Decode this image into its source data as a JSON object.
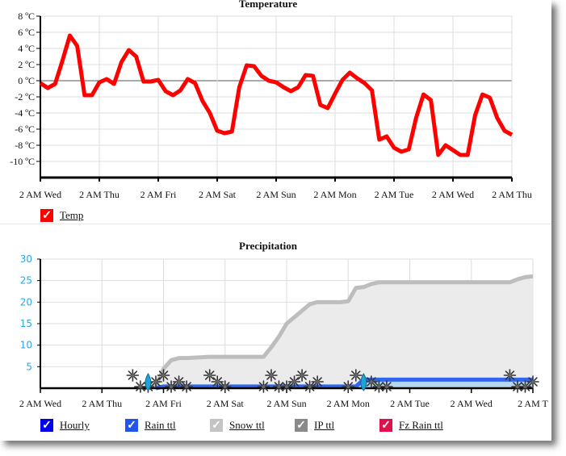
{
  "chart_data": [
    {
      "type": "line",
      "title": "Temperature",
      "x_tick_labels": [
        "2 AM Wed",
        "2 AM Thu",
        "2 AM Fri",
        "2 AM Sat",
        "2 AM Sun",
        "2 AM Mon",
        "2 AM Tue",
        "2 AM Wed",
        "2 AM Thu"
      ],
      "y_tick_labels": [
        "8 ºC",
        "6 ºC",
        "4 ºC",
        "2 ºC",
        "0 ºC",
        "-2 ºC",
        "-4 ºC",
        "-6 ºC",
        "-8 ºC",
        "-10 ºC"
      ],
      "ylim": [
        -12,
        8
      ],
      "x_start": "2 AM Wed",
      "interval_hours": 3,
      "grid": true,
      "series": [
        {
          "name": "Temp",
          "color": "#ff0000",
          "values": [
            -0.3,
            -0.9,
            -0.4,
            2.5,
            5.6,
            4.3,
            -1.8,
            -1.8,
            -0.2,
            0.2,
            -0.4,
            2.3,
            3.8,
            3.0,
            -0.1,
            -0.1,
            0.1,
            -1.3,
            -1.8,
            -1.2,
            0.2,
            -0.3,
            -2.5,
            -4.0,
            -6.2,
            -6.5,
            -6.3,
            -0.8,
            1.9,
            1.8,
            0.6,
            0.0,
            -0.2,
            -0.8,
            -1.3,
            -0.8,
            0.7,
            0.6,
            -3.0,
            -3.4,
            -1.6,
            0.1,
            1.0,
            0.3,
            -0.3,
            -1.2,
            -7.3,
            -6.9,
            -8.3,
            -8.8,
            -8.5,
            -4.6,
            -1.7,
            -2.4,
            -9.2,
            -8.0,
            -8.6,
            -9.2,
            -9.2,
            -4.3,
            -1.7,
            -2.1,
            -4.6,
            -6.2,
            -6.7
          ]
        }
      ],
      "legend": [
        {
          "label": "Temp",
          "checked": true,
          "color": "#ff0000"
        }
      ],
      "legend_placement": "bottom-left"
    },
    {
      "type": "area",
      "title": "Precipitation",
      "x_tick_labels": [
        "2 AM Wed",
        "2 AM Thu",
        "2 AM Fri",
        "2 AM Sat",
        "2 AM Sun",
        "2 AM Mon",
        "2 AM Tue",
        "2 AM Wed",
        "2 AM T"
      ],
      "y_tick_labels": [
        "30",
        "25",
        "20",
        "15",
        "10",
        "5"
      ],
      "ylim": [
        0,
        30
      ],
      "x_start": "2 AM Wed",
      "interval_hours": 3,
      "grid": true,
      "series": [
        {
          "name": "Snow ttl",
          "color": "#bdbdbd",
          "fill": "#ebebeb",
          "values": [
            0,
            0,
            0,
            0,
            0,
            0,
            0,
            0,
            0,
            0,
            0,
            0,
            0,
            0,
            0,
            0.5,
            4.5,
            6.5,
            7.0,
            7.0,
            7.1,
            7.2,
            7.3,
            7.3,
            7.3,
            7.3,
            7.3,
            7.3,
            7.3,
            7.3,
            9.5,
            12,
            15,
            16.5,
            18,
            19.5,
            20,
            20,
            20,
            20,
            20.2,
            23.3,
            23.5,
            24.2,
            24.6,
            24.6,
            24.6,
            24.6,
            24.6,
            24.6,
            24.6,
            24.6,
            24.6,
            24.6,
            24.6,
            24.6,
            24.6,
            24.6,
            24.6,
            24.6,
            24.6,
            24.6,
            25.3,
            25.8,
            26
          ]
        },
        {
          "name": "Rain ttl",
          "color": "#3366ee",
          "fill": "#b5d6ec",
          "values": [
            0,
            0,
            0,
            0,
            0,
            0,
            0,
            0,
            0,
            0,
            0,
            0,
            0,
            0,
            0,
            0,
            0.4,
            0.4,
            0.4,
            0.4,
            0.4,
            0.4,
            0.4,
            0.4,
            0.4,
            0.4,
            0.4,
            0.4,
            0.4,
            0.4,
            0.4,
            0.4,
            0.4,
            0.4,
            0.4,
            0.4,
            0.4,
            0.4,
            0.4,
            0.4,
            0.4,
            0.4,
            2,
            2,
            2,
            2,
            2,
            2,
            2,
            2,
            2,
            2,
            2,
            2,
            2,
            2,
            2,
            2,
            2,
            2,
            2,
            2,
            2,
            2,
            2
          ]
        }
      ],
      "snow_icon_times": [
        12,
        13,
        14,
        15,
        16,
        17,
        18,
        19,
        22,
        23,
        24,
        29,
        30,
        31,
        32,
        33,
        34,
        35,
        36,
        40,
        41,
        43,
        44,
        45,
        61,
        62,
        63,
        64
      ],
      "rain_icon_times": [
        14,
        42
      ],
      "legend": [
        {
          "label": "Hourly",
          "checked": true,
          "color": "#0000ee"
        },
        {
          "label": "Rain ttl",
          "checked": true,
          "color": "#2255ee"
        },
        {
          "label": "Snow ttl",
          "checked": true,
          "color": "#c4c4c4"
        },
        {
          "label": "IP ttl",
          "checked": true,
          "color": "#8a8a8a"
        },
        {
          "label": "Fz Rain ttl",
          "checked": true,
          "color": "#e0104a"
        }
      ],
      "legend_placement": "bottom"
    }
  ]
}
